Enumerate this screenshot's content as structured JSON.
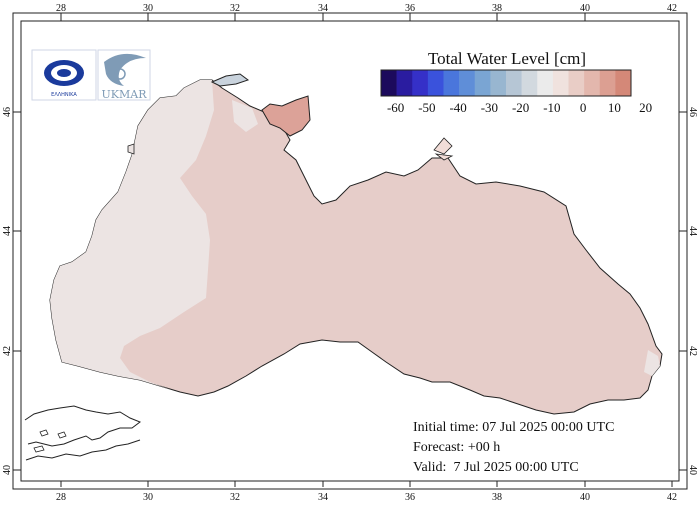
{
  "map": {
    "lon_range": [
      27,
      42
    ],
    "lat_range": [
      40,
      47
    ],
    "lon_ticks": [
      "28",
      "30",
      "32",
      "34",
      "36",
      "38",
      "40",
      "42"
    ],
    "lat_ticks": [
      "40",
      "42",
      "44",
      "46"
    ],
    "land_color": "#ffffff",
    "sea_west_color": "#ece4e3",
    "sea_main_color": "#e6cdc9",
    "azov_color": "#dca298"
  },
  "logos": [
    {
      "name": "logo-hnms",
      "caption": "ΕΛΛΗΝΙΚΑ"
    },
    {
      "name": "logo-ukmar",
      "caption": "UKMAR"
    }
  ],
  "colorbar": {
    "title": "Total Water Level [cm]",
    "labels": [
      "-60",
      "-50",
      "-40",
      "-30",
      "-20",
      "-10",
      "0",
      "10",
      "20"
    ],
    "colors": [
      "#1c0a5c",
      "#2a1ca0",
      "#3530c8",
      "#3a52dc",
      "#4a76dc",
      "#5f8ed8",
      "#7aa5d3",
      "#98b6d0",
      "#b6c6d5",
      "#d2d9df",
      "#ebebeb",
      "#f0e2de",
      "#e9cdc6",
      "#e3b7ad",
      "#dc9f92",
      "#d48878"
    ]
  },
  "info": {
    "initial": "Initial time: 07 Jul 2025 00:00 UTC",
    "forecast": "Forecast: +00 h",
    "valid": "Valid:  7 Jul 2025 00:00 UTC"
  }
}
